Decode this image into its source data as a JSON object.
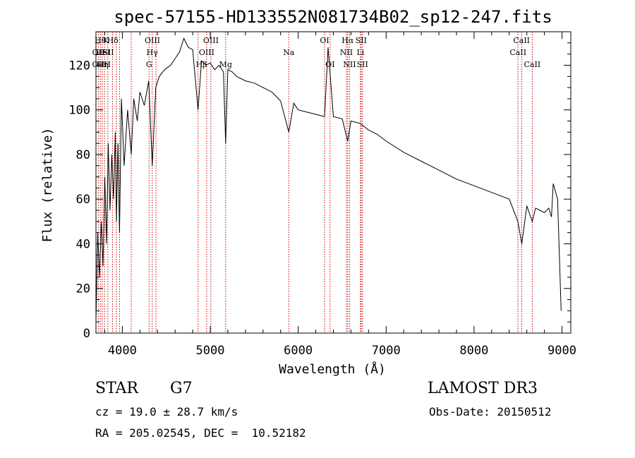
{
  "chart_data": {
    "type": "line",
    "title": "spec-57155-HD133552N081734B02_sp12-247.fits",
    "xlabel": "Wavelength (Å)",
    "ylabel": "Flux (relative)",
    "xlim": [
      3700,
      9100
    ],
    "ylim": [
      0,
      135
    ],
    "x_ticks": [
      4000,
      5000,
      6000,
      7000,
      8000,
      9000
    ],
    "y_ticks": [
      0,
      20,
      40,
      60,
      80,
      100,
      120
    ],
    "grid": false,
    "series": [
      {
        "x": [
          3700,
          3720,
          3740,
          3760,
          3780,
          3800,
          3820,
          3840,
          3860,
          3880,
          3900,
          3920,
          3933,
          3950,
          3968,
          3990,
          4020,
          4060,
          4101,
          4130,
          4170,
          4200,
          4250,
          4300,
          4340,
          4380,
          4420,
          4480,
          4550,
          4600,
          4650,
          4700,
          4750,
          4800,
          4861,
          4900,
          4950,
          5000,
          5050,
          5100,
          5150,
          5175,
          5200,
          5250,
          5300,
          5400,
          5500,
          5600,
          5700,
          5800,
          5893,
          5950,
          6000,
          6100,
          6200,
          6300,
          6340,
          6400,
          6500,
          6563,
          6600,
          6700,
          6800,
          6900,
          7000,
          7200,
          7400,
          7600,
          7800,
          8000,
          8200,
          8400,
          8498,
          8542,
          8600,
          8662,
          8700,
          8750,
          8800,
          8850,
          8880,
          8900,
          8950,
          8990
        ],
        "y": [
          5,
          45,
          25,
          50,
          30,
          70,
          40,
          85,
          55,
          80,
          60,
          90,
          50,
          85,
          45,
          105,
          75,
          100,
          80,
          105,
          95,
          108,
          102,
          113,
          75,
          110,
          115,
          118,
          120,
          123,
          126,
          132,
          128,
          127,
          100,
          122,
          120,
          121,
          118,
          120,
          117,
          85,
          118,
          117,
          115,
          113,
          112,
          110,
          108,
          104,
          90,
          103,
          100,
          99,
          98,
          97,
          128,
          97,
          96,
          86,
          95,
          94,
          91,
          89,
          86,
          81,
          77,
          73,
          69,
          66,
          63,
          60,
          50,
          40,
          57,
          50,
          56,
          55,
          54,
          56,
          52,
          67,
          60,
          10
        ]
      }
    ],
    "line_labels": [
      {
        "wl": 3750,
        "row": 0,
        "label": "Hθ"
      },
      {
        "wl": 3812,
        "row": 0,
        "label": "K"
      },
      {
        "wl": 3890,
        "row": 0,
        "label": "Hδ"
      },
      {
        "wl": 3728,
        "row": 1,
        "label": "OII"
      },
      {
        "wl": 3780,
        "row": 1,
        "label": "HeI"
      },
      {
        "wl": 3840,
        "row": 1,
        "label": "SII"
      },
      {
        "wl": 3727,
        "row": 2,
        "label": "OII"
      },
      {
        "wl": 3775,
        "row": 2,
        "label": "Hη"
      },
      {
        "wl": 3830,
        "row": 2,
        "label": "H"
      },
      {
        "wl": 4342,
        "row": 0,
        "label": "OIII"
      },
      {
        "wl": 4340,
        "row": 1,
        "label": "Hγ"
      },
      {
        "wl": 4304,
        "row": 2,
        "label": "G"
      },
      {
        "wl": 5007,
        "row": 0,
        "label": "OIII"
      },
      {
        "wl": 4959,
        "row": 1,
        "label": "OIII"
      },
      {
        "wl": 4900,
        "row": 2,
        "label": "Hβ"
      },
      {
        "wl": 5175,
        "row": 2,
        "label": "Mg"
      },
      {
        "wl": 5893,
        "row": 1,
        "label": "Na"
      },
      {
        "wl": 6300,
        "row": 0,
        "label": "OI"
      },
      {
        "wl": 6363,
        "row": 2,
        "label": "OI"
      },
      {
        "wl": 6563,
        "row": 0,
        "label": "Hα"
      },
      {
        "wl": 6716,
        "row": 0,
        "label": "SII"
      },
      {
        "wl": 6548,
        "row": 1,
        "label": "NII"
      },
      {
        "wl": 6708,
        "row": 1,
        "label": "Li"
      },
      {
        "wl": 6584,
        "row": 2,
        "label": "NII"
      },
      {
        "wl": 6731,
        "row": 2,
        "label": "SII"
      },
      {
        "wl": 8540,
        "row": 0,
        "label": "CaII"
      },
      {
        "wl": 8500,
        "row": 1,
        "label": "CaII"
      },
      {
        "wl": 8662,
        "row": 2,
        "label": "CaII"
      }
    ],
    "line_markers": [
      3727,
      3750,
      3771,
      3798,
      3835,
      3889,
      3933,
      3968,
      4101,
      4304,
      4340,
      4383,
      4861,
      4959,
      5007,
      5175,
      5893,
      6300,
      6363,
      6548,
      6563,
      6584,
      6708,
      6716,
      6731,
      8498,
      8542,
      8662
    ],
    "marker_color": "#cc0000",
    "series_color": "#000000"
  },
  "info": {
    "class_label": "STAR",
    "subclass": "G7",
    "survey": "LAMOST DR3",
    "cz_text": "cz = 19.0 ± 28.7 km/s",
    "obs_date": "Obs-Date: 20150512",
    "coords_text": "RA = 205.02545, DEC =  10.52182"
  }
}
